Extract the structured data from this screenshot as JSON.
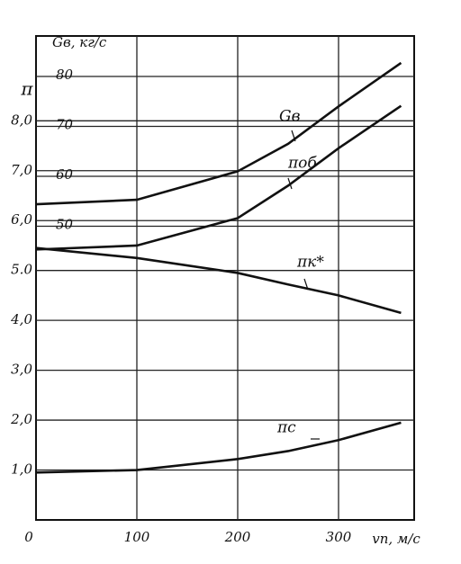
{
  "chart_data": {
    "type": "line",
    "y_label": "π",
    "y2_label": "Gв, кг/с",
    "x_label": "vп, м/с",
    "x": [
      0,
      100,
      200,
      250,
      300,
      362
    ],
    "series": [
      {
        "name": "Gв",
        "color": "#111111",
        "axis": "y2",
        "values": [
          54.4,
          55.3,
          61,
          66.5,
          74,
          82.7
        ]
      },
      {
        "name": "πоб",
        "color": "#111111",
        "values": [
          5.42,
          5.5,
          6.05,
          6.7,
          7.45,
          8.3
        ]
      },
      {
        "name": "πк*",
        "color": "#111111",
        "values": [
          5.45,
          5.25,
          4.95,
          4.72,
          4.5,
          4.15
        ]
      },
      {
        "name": "πc",
        "color": "#111111",
        "values": [
          0.95,
          1.0,
          1.22,
          1.38,
          1.6,
          1.95
        ]
      }
    ],
    "xlim": [
      0,
      375
    ],
    "xticks": [
      0,
      100,
      200,
      300
    ],
    "ylim": [
      0,
      9.7
    ],
    "yticks": [
      {
        "value": 1,
        "label": "1,0"
      },
      {
        "value": 2,
        "label": "2,0"
      },
      {
        "value": 3,
        "label": "3,0"
      },
      {
        "value": 4,
        "label": "4,0"
      },
      {
        "value": 5,
        "label": "5.0"
      },
      {
        "value": 6,
        "label": "6,0"
      },
      {
        "value": 7,
        "label": "7,0"
      },
      {
        "value": 8,
        "label": "8,0"
      }
    ],
    "y2lim": [
      -8.8,
      88.1
    ],
    "y2ticks": [
      50,
      60,
      70,
      80
    ],
    "grid": true
  }
}
